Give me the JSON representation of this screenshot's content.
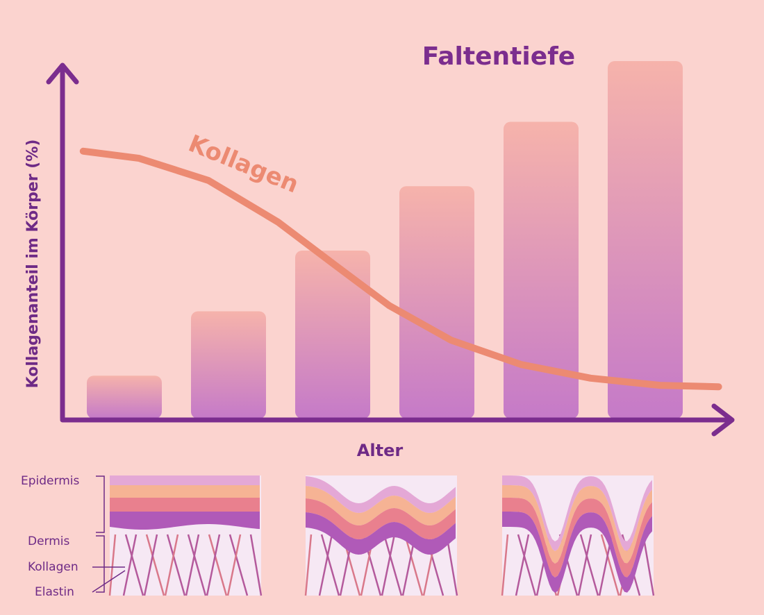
{
  "chart_data": {
    "type": "bar",
    "title": "Faltentiefe",
    "xlabel": "Alter",
    "ylabel": "Kollagenanteil im Körper (%)",
    "categories": [
      null,
      null,
      null,
      null,
      null,
      null
    ],
    "ylim": [
      0,
      100
    ],
    "xlim": [
      0,
      100
    ],
    "series": [
      {
        "name": "Faltentiefe",
        "type": "bar",
        "color": "#c87ac6",
        "values": [
          12,
          30,
          47,
          65,
          83,
          100
        ]
      },
      {
        "name": "Kollagen",
        "type": "line",
        "color": "#ec8a72",
        "x": [
          3.1,
          11.5,
          21.9,
          32.3,
          40.6,
          49,
          58.3,
          68.8,
          79.2,
          89.6,
          98.4
        ],
        "values": [
          74.8,
          72.8,
          66.6,
          55,
          43.3,
          31.6,
          21.9,
          15.1,
          11.3,
          9.3,
          8.9
        ]
      }
    ]
  },
  "diagram": {
    "labels": [
      "Epidermis",
      "Dermis",
      "Kollagen",
      "Elastin"
    ]
  }
}
